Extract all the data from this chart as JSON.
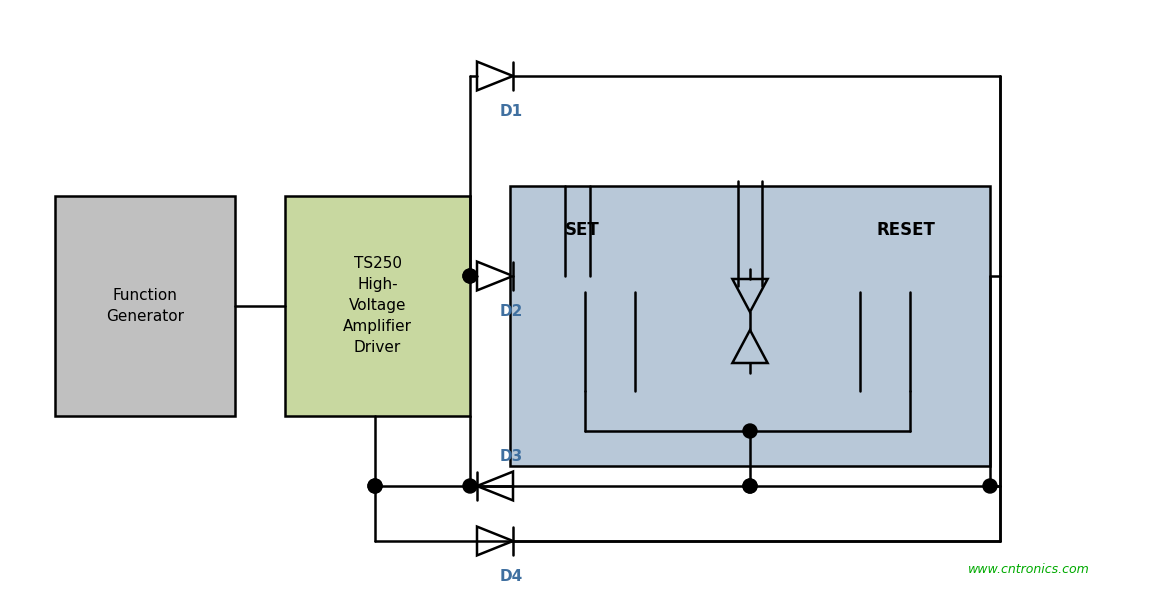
{
  "bg_color": "#ffffff",
  "line_color": "#000000",
  "relay_bg_color": "#b8c8d8",
  "relay_border_color": "#000000",
  "fg_box_color": "#c8d8a0",
  "gray_box_color": "#c0c0c0",
  "dot_color": "#000000",
  "diode_color": "#000000",
  "text_color": "#000000",
  "label_color": "#4070a0",
  "watermark_color": "#00aa00",
  "watermark": "www.cntronics.com",
  "fg_box_label": "TS250\nHigh-\nVoltage\nAmplifier\nDriver",
  "gray_box_label": "Function\nGenerator",
  "set_label": "SET",
  "reset_label": "RESET",
  "d_labels": [
    "D1",
    "D2",
    "D3",
    "D4"
  ]
}
